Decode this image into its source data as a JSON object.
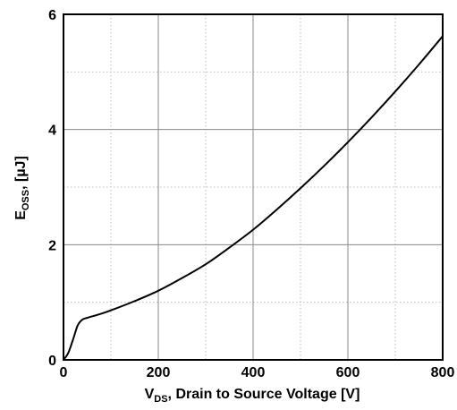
{
  "chart_data": {
    "type": "line",
    "title": "",
    "xlabel_parts": {
      "main": "V",
      "sub": "DS",
      "rest": ", Drain to Source Voltage [V]"
    },
    "ylabel_parts": {
      "main": "E",
      "sub": "OSS",
      "rest": ", [µJ]"
    },
    "xlim": [
      0,
      800
    ],
    "ylim": [
      0,
      6
    ],
    "x_major_ticks": [
      0,
      200,
      400,
      600,
      800
    ],
    "x_minor_ticks": [
      100,
      300,
      500,
      700
    ],
    "y_major_ticks": [
      0,
      2,
      4,
      6
    ],
    "y_minor_ticks": [
      1,
      3,
      5
    ],
    "x_tick_labels": [
      "0",
      "200",
      "400",
      "600",
      "800"
    ],
    "y_tick_labels": [
      "0",
      "2",
      "4",
      "6"
    ],
    "grid": true,
    "series": [
      {
        "x": [
          0,
          10,
          20,
          30,
          40,
          50,
          75,
          100,
          150,
          200,
          250,
          300,
          350,
          400,
          450,
          500,
          550,
          600,
          650,
          700,
          750,
          800
        ],
        "y": [
          0,
          0.12,
          0.35,
          0.6,
          0.7,
          0.73,
          0.79,
          0.86,
          1.02,
          1.2,
          1.42,
          1.66,
          1.95,
          2.26,
          2.61,
          2.98,
          3.37,
          3.78,
          4.21,
          4.66,
          5.13,
          5.62
        ]
      }
    ],
    "colors": {
      "line": "#000000",
      "grid_major": "#8a8a8a",
      "grid_minor": "#bdbdbd",
      "frame": "#000000"
    }
  }
}
